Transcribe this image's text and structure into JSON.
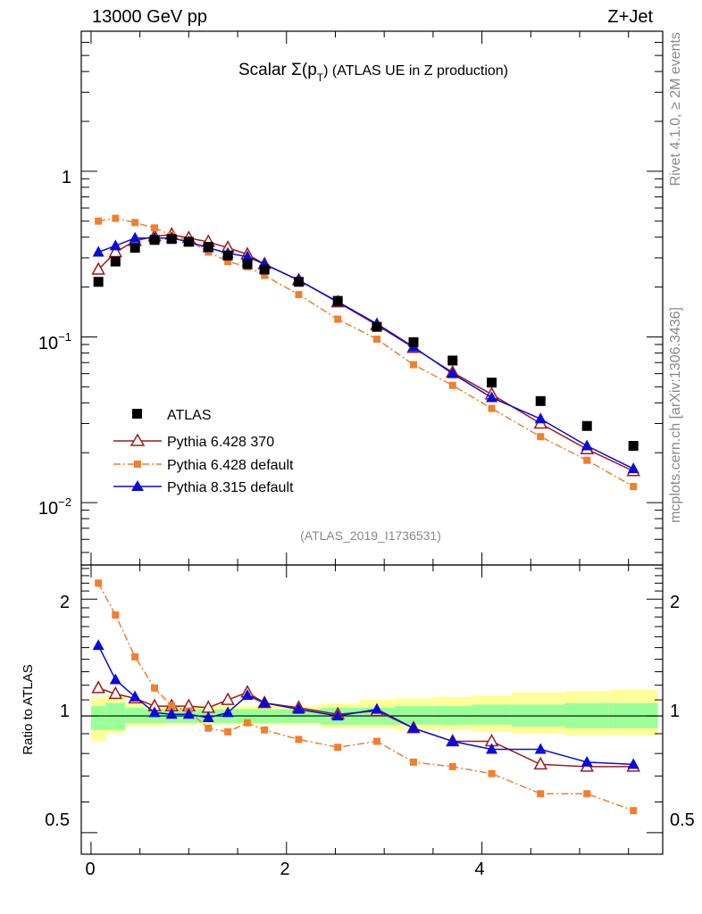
{
  "header": {
    "energy": "13000 GeV pp",
    "process": "Z+Jet",
    "rivet": "Rivet 4.1.0, ≥ 2M events",
    "mcplots": "mcplots.cern.ch [arXiv:1306.3436]",
    "analysis_id": "(ATLAS_2019_I1736531)"
  },
  "chart_data": [
    {
      "type": "scatter",
      "title": "Scalar Σ(p_T) (ATLAS UE in Z production)",
      "title_main": "Scalar Σ(p",
      "title_sub": "T",
      "title_rest": ") (ATLAS UE in Z production)",
      "yscale": "log",
      "ylim": [
        0.0042,
        7.0
      ],
      "xlim": [
        -0.1,
        5.85
      ],
      "yticks": [
        {
          "label": "1",
          "exp": ""
        },
        {
          "label": "10",
          "exp": "−1"
        },
        {
          "label": "10",
          "exp": "−2"
        }
      ],
      "legend_position": "bottom-left",
      "series": [
        {
          "name": "ATLAS",
          "color": "#000000",
          "marker": "square",
          "x": [
            0.075,
            0.25,
            0.45,
            0.65,
            0.825,
            1.0,
            1.2,
            1.4,
            1.6,
            1.775,
            2.125,
            2.525,
            2.925,
            3.3,
            3.7,
            4.1,
            4.6,
            5.075,
            5.55
          ],
          "y": [
            0.215,
            0.285,
            0.345,
            0.385,
            0.39,
            0.375,
            0.35,
            0.31,
            0.275,
            0.255,
            0.215,
            0.165,
            0.115,
            0.093,
            0.072,
            0.053,
            0.041,
            0.029,
            0.022
          ]
        },
        {
          "name": "Pythia 6.428 370",
          "color": "#9b1b1b",
          "marker": "open-triangle",
          "line": "solid",
          "x": [
            0.075,
            0.25,
            0.45,
            0.65,
            0.825,
            1.0,
            1.2,
            1.4,
            1.6,
            1.775,
            2.125,
            2.525,
            2.925,
            3.3,
            3.7,
            4.1,
            4.6,
            5.075,
            5.55
          ],
          "y": [
            0.255,
            0.325,
            0.38,
            0.405,
            0.415,
            0.395,
            0.375,
            0.345,
            0.315,
            0.275,
            0.22,
            0.162,
            0.118,
            0.086,
            0.061,
            0.045,
            0.03,
            0.021,
            0.0155
          ]
        },
        {
          "name": "Pythia 6.428 default",
          "color": "#f07f2e",
          "marker": "small-square",
          "line": "dashdot",
          "x": [
            0.075,
            0.25,
            0.45,
            0.65,
            0.825,
            1.0,
            1.2,
            1.4,
            1.6,
            1.775,
            2.125,
            2.525,
            2.925,
            3.3,
            3.7,
            4.1,
            4.6,
            5.075,
            5.55
          ],
          "y": [
            0.5,
            0.52,
            0.49,
            0.455,
            0.41,
            0.38,
            0.325,
            0.285,
            0.265,
            0.235,
            0.18,
            0.128,
            0.097,
            0.068,
            0.051,
            0.037,
            0.025,
            0.018,
            0.0125
          ]
        },
        {
          "name": "Pythia 8.315 default",
          "color": "#0a0adc",
          "marker": "triangle",
          "line": "solid",
          "x": [
            0.075,
            0.25,
            0.45,
            0.65,
            0.825,
            1.0,
            1.2,
            1.4,
            1.6,
            1.775,
            2.125,
            2.525,
            2.925,
            3.3,
            3.7,
            4.1,
            4.6,
            5.075,
            5.55
          ],
          "y": [
            0.325,
            0.355,
            0.395,
            0.395,
            0.395,
            0.375,
            0.345,
            0.32,
            0.305,
            0.275,
            0.22,
            0.163,
            0.12,
            0.087,
            0.06,
            0.043,
            0.032,
            0.022,
            0.016
          ]
        }
      ]
    },
    {
      "type": "scatter",
      "ylabel": "Ratio to ATLAS",
      "yscale": "log",
      "ylim": [
        0.44,
        2.45
      ],
      "xlim": [
        -0.1,
        5.85
      ],
      "xticks": [
        0,
        2,
        4
      ],
      "yticks": [
        0.5,
        1,
        2
      ],
      "band_edges": [
        0.0,
        0.15,
        0.35,
        0.55,
        0.75,
        0.9,
        1.1,
        1.3,
        1.5,
        1.7,
        1.85,
        2.35,
        2.75,
        3.1,
        3.5,
        3.9,
        4.3,
        4.85,
        5.3,
        5.8
      ],
      "band_inner": [
        [
          0.92,
          1.06
        ],
        [
          0.92,
          1.08
        ],
        [
          0.96,
          1.05
        ],
        [
          0.96,
          1.04
        ],
        [
          0.96,
          1.04
        ],
        [
          0.96,
          1.04
        ],
        [
          0.96,
          1.04
        ],
        [
          0.96,
          1.04
        ],
        [
          0.96,
          1.04
        ],
        [
          0.96,
          1.04
        ],
        [
          0.96,
          1.04
        ],
        [
          0.95,
          1.05
        ],
        [
          0.95,
          1.05
        ],
        [
          0.95,
          1.06
        ],
        [
          0.95,
          1.06
        ],
        [
          0.95,
          1.07
        ],
        [
          0.94,
          1.07
        ],
        [
          0.93,
          1.08
        ],
        [
          0.93,
          1.08
        ]
      ],
      "band_outer": [
        [
          0.86,
          1.12
        ],
        [
          0.9,
          1.13
        ],
        [
          0.94,
          1.08
        ],
        [
          0.94,
          1.06
        ],
        [
          0.95,
          1.06
        ],
        [
          0.95,
          1.06
        ],
        [
          0.95,
          1.06
        ],
        [
          0.95,
          1.06
        ],
        [
          0.95,
          1.06
        ],
        [
          0.95,
          1.06
        ],
        [
          0.95,
          1.06
        ],
        [
          0.93,
          1.08
        ],
        [
          0.93,
          1.1
        ],
        [
          0.92,
          1.11
        ],
        [
          0.92,
          1.12
        ],
        [
          0.91,
          1.13
        ],
        [
          0.9,
          1.15
        ],
        [
          0.89,
          1.16
        ],
        [
          0.89,
          1.17
        ]
      ],
      "series": [
        {
          "name": "Pythia 6.428 370",
          "color": "#9b1b1b",
          "marker": "open-triangle",
          "line": "solid",
          "x": [
            0.075,
            0.25,
            0.45,
            0.65,
            0.825,
            1.0,
            1.2,
            1.4,
            1.6,
            1.775,
            2.125,
            2.525,
            2.925,
            3.3,
            3.7,
            4.1,
            4.6,
            5.075,
            5.55
          ],
          "y": [
            1.18,
            1.14,
            1.11,
            1.06,
            1.06,
            1.06,
            1.05,
            1.1,
            1.15,
            1.08,
            1.05,
            1.01,
            1.03,
            0.93,
            0.86,
            0.86,
            0.75,
            0.74,
            0.74
          ]
        },
        {
          "name": "Pythia 6.428 default",
          "color": "#f07f2e",
          "marker": "small-square",
          "line": "dashdot",
          "x": [
            0.075,
            0.25,
            0.45,
            0.65,
            0.825,
            1.0,
            1.2,
            1.4,
            1.6,
            1.775,
            2.125,
            2.525,
            2.925,
            3.3,
            3.7,
            4.1,
            4.6,
            5.075,
            5.55
          ],
          "y": [
            2.2,
            1.82,
            1.42,
            1.18,
            1.06,
            1.03,
            0.93,
            0.91,
            0.96,
            0.92,
            0.87,
            0.83,
            0.86,
            0.76,
            0.74,
            0.71,
            0.63,
            0.63,
            0.57
          ]
        },
        {
          "name": "Pythia 8.315 default",
          "color": "#0a0adc",
          "marker": "triangle",
          "line": "solid",
          "x": [
            0.075,
            0.25,
            0.45,
            0.65,
            0.825,
            1.0,
            1.2,
            1.4,
            1.6,
            1.775,
            2.125,
            2.525,
            2.925,
            3.3,
            3.7,
            4.1,
            4.6,
            5.075,
            5.55
          ],
          "y": [
            1.52,
            1.24,
            1.12,
            1.02,
            1.01,
            1.01,
            0.99,
            1.02,
            1.13,
            1.08,
            1.04,
            1.0,
            1.04,
            0.93,
            0.86,
            0.82,
            0.82,
            0.76,
            0.75
          ]
        }
      ]
    }
  ]
}
